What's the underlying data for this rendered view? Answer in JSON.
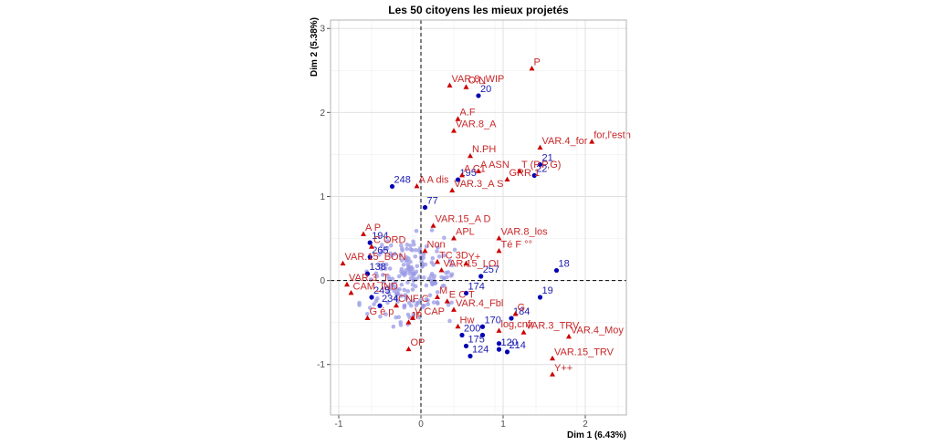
{
  "chart_data": {
    "type": "scatter",
    "title": "Les 50  citoyens les mieux projetés",
    "xlabel": "Dim 1 (6.43%)",
    "ylabel": "Dim 2 (5.38%)",
    "xlim": [
      -1.1,
      2.5
    ],
    "ylim": [
      -1.6,
      3.1
    ],
    "x_ticks": [
      -1,
      0,
      1,
      2
    ],
    "y_ticks": [
      -1,
      0,
      1,
      2,
      3
    ],
    "grid": true,
    "reference_lines": {
      "x": 0,
      "y": 0,
      "style": "dashed"
    },
    "colors": {
      "individuals": "#0000b3",
      "background_individuals": "#9a9ae6",
      "categories": "#cc0000",
      "category_labels": "#c8282a",
      "grid": "#e0e0e0",
      "panel_border": "#b3b3b3"
    },
    "individuals": [
      {
        "label": "20",
        "x": 0.7,
        "y": 2.2
      },
      {
        "label": "195",
        "x": 0.45,
        "y": 1.2
      },
      {
        "label": "21",
        "x": 1.45,
        "y": 1.38
      },
      {
        "label": "22",
        "x": 1.38,
        "y": 1.25
      },
      {
        "label": "248",
        "x": -0.35,
        "y": 1.12
      },
      {
        "label": "77",
        "x": 0.05,
        "y": 0.87
      },
      {
        "label": "194",
        "x": -0.62,
        "y": 0.45
      },
      {
        "label": "265",
        "x": -0.62,
        "y": 0.28
      },
      {
        "label": "138",
        "x": -0.65,
        "y": 0.08
      },
      {
        "label": "18",
        "x": 1.65,
        "y": 0.12
      },
      {
        "label": "257",
        "x": 0.73,
        "y": 0.05
      },
      {
        "label": "19",
        "x": 1.45,
        "y": -0.2
      },
      {
        "label": "174",
        "x": 0.55,
        "y": -0.15
      },
      {
        "label": "184",
        "x": 1.1,
        "y": -0.45
      },
      {
        "label": "170",
        "x": 0.75,
        "y": -0.55
      },
      {
        "label": "175",
        "x": 0.55,
        "y": -0.78
      },
      {
        "label": "124",
        "x": 0.6,
        "y": -0.9
      },
      {
        "label": "214",
        "x": 1.05,
        "y": -0.85
      },
      {
        "label": "120",
        "x": 0.95,
        "y": -0.82
      },
      {
        "label": "200",
        "x": 0.5,
        "y": -0.65
      },
      {
        "label": "245",
        "x": -0.6,
        "y": -0.2
      },
      {
        "label": "234",
        "x": -0.5,
        "y": -0.3
      }
    ],
    "extra_individual_points": [
      {
        "x": 0.75,
        "y": -0.65
      },
      {
        "x": 0.95,
        "y": -0.75
      }
    ],
    "categories": [
      {
        "label": "P",
        "x": 1.35,
        "y": 2.52
      },
      {
        "label": "O.N",
        "x": 0.55,
        "y": 2.3
      },
      {
        "label": "VAR.8_WIP",
        "x": 0.35,
        "y": 2.32
      },
      {
        "label": "A.F",
        "x": 0.45,
        "y": 1.92
      },
      {
        "label": "VAR.8_A",
        "x": 0.4,
        "y": 1.78
      },
      {
        "label": "VAR.4_for",
        "x": 1.45,
        "y": 1.58
      },
      {
        "label": "for,l'esth",
        "x": 2.08,
        "y": 1.65
      },
      {
        "label": "N.PH",
        "x": 0.6,
        "y": 1.48
      },
      {
        "label": "A ASN",
        "x": 0.7,
        "y": 1.3
      },
      {
        "label": "T (P,P,G)",
        "x": 1.2,
        "y": 1.3
      },
      {
        "label": "GRR 1",
        "x": 1.05,
        "y": 1.2
      },
      {
        "label": "A C1",
        "x": 0.5,
        "y": 1.25
      },
      {
        "label": "VAR.3_A S",
        "x": 0.38,
        "y": 1.07
      },
      {
        "label": "A A dis",
        "x": -0.05,
        "y": 1.12
      },
      {
        "label": "VAR.15_A D",
        "x": 0.15,
        "y": 0.65
      },
      {
        "label": "A P",
        "x": -0.7,
        "y": 0.55
      },
      {
        "label": "VAR.8_los",
        "x": 0.95,
        "y": 0.5
      },
      {
        "label": "C ORD",
        "x": -0.6,
        "y": 0.4
      },
      {
        "label": "APL",
        "x": 0.4,
        "y": 0.5
      },
      {
        "label": "Non",
        "x": 0.05,
        "y": 0.35
      },
      {
        "label": "Té F °°",
        "x": 0.95,
        "y": 0.35
      },
      {
        "label": "TC 3D",
        "x": 0.2,
        "y": 0.22
      },
      {
        "label": "Y+",
        "x": 0.55,
        "y": 0.2
      },
      {
        "label": "VAR.15_LOI",
        "x": 0.25,
        "y": 0.12
      },
      {
        "label": "VAR.15_BON",
        "x": -0.95,
        "y": 0.2
      },
      {
        "label": "VAR.3_T",
        "x": -0.9,
        "y": -0.05
      },
      {
        "label": "VAR.4_Fbl",
        "x": 0.4,
        "y": -0.35
      },
      {
        "label": "E C T",
        "x": 0.32,
        "y": -0.25
      },
      {
        "label": "M",
        "x": 0.2,
        "y": -0.2
      },
      {
        "label": "CAM_IND",
        "x": -0.85,
        "y": -0.15
      },
      {
        "label": "CNF C",
        "x": -0.3,
        "y": -0.3
      },
      {
        "label": "G é p",
        "x": -0.65,
        "y": -0.45
      },
      {
        "label": "JP",
        "x": -0.15,
        "y": -0.5
      },
      {
        "label": "V CAP",
        "x": -0.1,
        "y": -0.45
      },
      {
        "label": "G",
        "x": 1.15,
        "y": -0.4
      },
      {
        "label": "VAR.3_TRV",
        "x": 1.25,
        "y": -0.62
      },
      {
        "label": "VAR.4_Moy",
        "x": 1.8,
        "y": -0.67
      },
      {
        "label": "VAR.15_TRV",
        "x": 1.6,
        "y": -0.93
      },
      {
        "label": "Y++",
        "x": 1.6,
        "y": -1.12
      },
      {
        "label": "OP",
        "x": -0.15,
        "y": -0.82
      },
      {
        "label": "Hw",
        "x": 0.45,
        "y": -0.55
      },
      {
        "label": "log,cnfr",
        "x": 0.95,
        "y": -0.6
      }
    ]
  }
}
